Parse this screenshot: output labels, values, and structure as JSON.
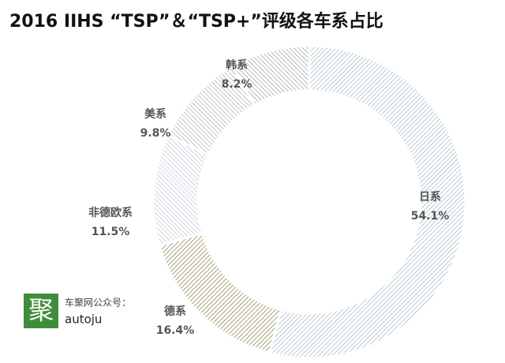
{
  "chart_data": {
    "type": "donut",
    "title": "2016 IIHS “TSP”＆“TSP+”评级各车系占比",
    "categories": [
      "日系",
      "德系",
      "非德欧系",
      "美系",
      "韩系"
    ],
    "values": [
      54.1,
      16.4,
      11.5,
      9.8,
      8.2
    ],
    "value_labels": [
      "54.1%",
      "16.4%",
      "11.5%",
      "9.8%",
      "8.2%"
    ],
    "colors": [
      "#a9bfcc",
      "#8f8a55",
      "#c3ccd6",
      "#b4b4b4",
      "#a6a6a6"
    ]
  },
  "watermark": {
    "logo": "聚",
    "line1": "车聚网公众号：",
    "line2": "autoju"
  }
}
